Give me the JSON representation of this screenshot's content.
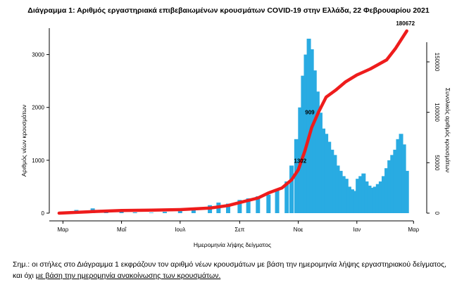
{
  "chart_data": {
    "type": "bar",
    "title": "Διάγραμμα 1: Αριθμός εργαστηριακά επιβεβαιωμένων κρουσμάτων COVID-19 στην Ελλάδα, 22 Φεβρουαρίου 2021",
    "xlabel": "Ημερομηνία λήψης δείγματος",
    "ylabel": "Αριθμός νέων κρουσμάτων",
    "y2label": "Συνολικός αριθμός κρουσμάτων",
    "x_ticks": [
      "Μαρ",
      "Μαΐ",
      "Ιουλ",
      "Σεπ",
      "Νοε",
      "Ιαν",
      "Μαρ"
    ],
    "ylim": [
      0,
      3500
    ],
    "y_ticks": [
      0,
      1000,
      2000,
      3000
    ],
    "y2lim": [
      0,
      180672
    ],
    "y2_ticks": [
      0,
      50000,
      100000,
      150000
    ],
    "grid": false,
    "bar_color": "#29abe2",
    "line_color": "#ee1c1c",
    "series": [
      {
        "kind": "bar",
        "x": [
          "2020-03-01",
          "2020-03-15",
          "2020-04-01",
          "2020-04-15",
          "2020-05-01",
          "2020-05-15",
          "2020-06-01",
          "2020-06-15",
          "2020-07-01",
          "2020-07-15",
          "2020-08-01",
          "2020-08-10",
          "2020-08-20",
          "2020-09-01",
          "2020-09-10",
          "2020-09-20",
          "2020-10-01",
          "2020-10-10",
          "2020-10-20",
          "2020-10-25",
          "2020-10-30",
          "2020-11-03",
          "2020-11-06",
          "2020-11-09",
          "2020-11-12",
          "2020-11-15",
          "2020-11-18",
          "2020-11-21",
          "2020-11-24",
          "2020-11-27",
          "2020-11-30",
          "2020-12-03",
          "2020-12-06",
          "2020-12-09",
          "2020-12-12",
          "2020-12-15",
          "2020-12-18",
          "2020-12-21",
          "2020-12-24",
          "2020-12-27",
          "2020-12-30",
          "2021-01-02",
          "2021-01-05",
          "2021-01-08",
          "2021-01-11",
          "2021-01-14",
          "2021-01-17",
          "2021-01-20",
          "2021-01-23",
          "2021-01-26",
          "2021-01-29",
          "2021-02-01",
          "2021-02-04",
          "2021-02-07",
          "2021-02-10",
          "2021-02-13",
          "2021-02-16",
          "2021-02-19",
          "2021-02-22"
        ],
        "values": [
          10,
          60,
          90,
          40,
          20,
          15,
          10,
          25,
          40,
          60,
          150,
          200,
          180,
          250,
          280,
          320,
          350,
          450,
          600,
          900,
          1400,
          2000,
          2600,
          3000,
          3300,
          3100,
          2700,
          2300,
          1900,
          1600,
          1500,
          1350,
          1200,
          1100,
          900,
          800,
          700,
          650,
          500,
          450,
          420,
          650,
          700,
          750,
          600,
          520,
          480,
          500,
          550,
          600,
          700,
          850,
          1000,
          1100,
          1200,
          1400,
          1500,
          1300,
          800
        ]
      },
      {
        "kind": "line",
        "name": "Συνολικός αριθμός κρουσμάτων",
        "x": [
          "2020-02-26",
          "2020-04-01",
          "2020-05-01",
          "2020-06-01",
          "2020-07-01",
          "2020-08-01",
          "2020-08-20",
          "2020-09-01",
          "2020-09-20",
          "2020-10-01",
          "2020-10-15",
          "2020-10-25",
          "2020-11-01",
          "2020-11-08",
          "2020-11-15",
          "2020-11-22",
          "2020-11-30",
          "2020-12-10",
          "2020-12-20",
          "2021-01-01",
          "2021-01-15",
          "2021-02-01",
          "2021-02-10",
          "2021-02-22"
        ],
        "values": [
          0,
          1500,
          2600,
          3000,
          3500,
          5000,
          7500,
          10500,
          15000,
          20000,
          25000,
          33000,
          43000,
          62000,
          85000,
          100000,
          115000,
          122000,
          130000,
          137000,
          143000,
          152000,
          163000,
          180672
        ]
      }
    ],
    "annotations": [
      {
        "x": "2021-02-22",
        "y2": 180672,
        "label": "180672"
      },
      {
        "x": "2020-11-13",
        "y2": 98000,
        "label": "909"
      },
      {
        "x": "2020-11-03",
        "y2": 50000,
        "label": "1302"
      }
    ]
  },
  "note": {
    "prefix": "Σημ.: οι στήλες στο Διάγραμμα 1 εκφράζουν τον αριθμό νέων κρουσμάτων με βάση την ημερομηνία λήψης εργαστηριακού δείγματος, και όχι ",
    "underlined": "με βάση την ημερομηνία ανακοίνωσης των κρουσμάτων."
  }
}
